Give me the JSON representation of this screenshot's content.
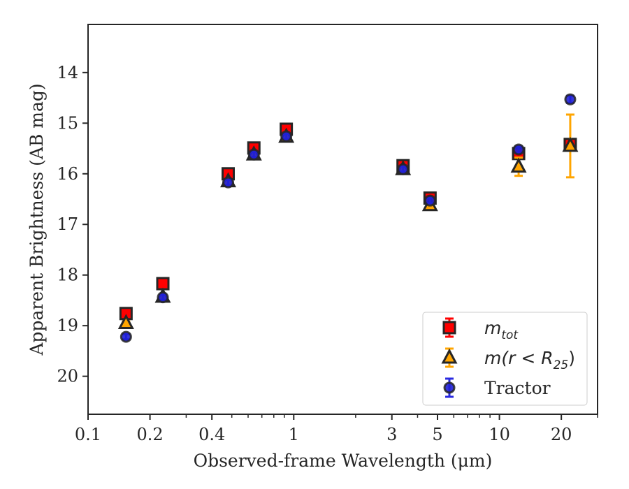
{
  "chart_data": {
    "type": "scatter",
    "xlabel": "Observed-frame Wavelength (μm)",
    "ylabel": "Apparent Brightness (AB mag)",
    "xscale": "log",
    "xlim": [
      0.1,
      30
    ],
    "ylim": [
      20.75,
      13.05
    ],
    "y_inverted": true,
    "x_tick_labels": [
      {
        "value": 0.1,
        "label": "0.1"
      },
      {
        "value": 0.2,
        "label": "0.2"
      },
      {
        "value": 0.4,
        "label": "0.4"
      },
      {
        "value": 1,
        "label": "1"
      },
      {
        "value": 3,
        "label": "3"
      },
      {
        "value": 5,
        "label": "5"
      },
      {
        "value": 10,
        "label": "10"
      },
      {
        "value": 20,
        "label": "20"
      }
    ],
    "x_minor_ticks": [
      0.3,
      0.5,
      0.6,
      0.7,
      0.8,
      0.9,
      2,
      4,
      6,
      7,
      8,
      9,
      30
    ],
    "y_ticks": [
      14,
      15,
      16,
      17,
      18,
      19,
      20
    ],
    "grid": false,
    "legend_position": "lower-right",
    "legend": [
      {
        "label": "m",
        "sub": "tot",
        "marker": "square",
        "color": "#ff0000",
        "errcolor": "#ff0000"
      },
      {
        "label": "m(r < R",
        "sub": "25",
        "suffix": ")",
        "marker": "triangle",
        "color": "#ffa500",
        "errcolor": "#ffa500"
      },
      {
        "label": "Tractor",
        "marker": "circle",
        "color": "#1f1fd6",
        "errcolor": "#2929e0"
      }
    ],
    "series": [
      {
        "marker": "square",
        "color": "#ff0000",
        "edgecolor": "#262626",
        "points": [
          {
            "x": 0.153,
            "y": 18.76,
            "err": 0.03
          },
          {
            "x": 0.231,
            "y": 18.17,
            "err": 0.03
          },
          {
            "x": 0.48,
            "y": 16.0,
            "err": 0.03
          },
          {
            "x": 0.64,
            "y": 15.49,
            "err": 0.03
          },
          {
            "x": 0.92,
            "y": 15.12,
            "err": 0.03
          },
          {
            "x": 3.4,
            "y": 15.84,
            "err": 0.03
          },
          {
            "x": 4.6,
            "y": 16.48,
            "err": 0.03
          },
          {
            "x": 12.4,
            "y": 15.6,
            "err": 0.03
          },
          {
            "x": 22.1,
            "y": 15.42,
            "err": 0.03
          }
        ]
      },
      {
        "marker": "triangle",
        "color": "#ffa500",
        "edgecolor": "#262626",
        "points": [
          {
            "x": 0.153,
            "y": 18.95,
            "err": 0.03
          },
          {
            "x": 0.231,
            "y": 18.43,
            "err": 0.03
          },
          {
            "x": 0.48,
            "y": 16.15,
            "err": 0.03
          },
          {
            "x": 0.64,
            "y": 15.62,
            "err": 0.03
          },
          {
            "x": 0.92,
            "y": 15.27,
            "err": 0.03
          },
          {
            "x": 3.4,
            "y": 15.91,
            "err": 0.03
          },
          {
            "x": 4.6,
            "y": 16.62,
            "err": 0.03
          },
          {
            "x": 12.4,
            "y": 15.86,
            "err": 0.18
          },
          {
            "x": 22.1,
            "y": 15.45,
            "err": 0.62
          }
        ]
      },
      {
        "marker": "circle",
        "color": "#1f1fd6",
        "edgecolor": "#262626",
        "points": [
          {
            "x": 0.153,
            "y": 19.22,
            "err": 0.05
          },
          {
            "x": 0.231,
            "y": 18.44,
            "err": 0.05
          },
          {
            "x": 0.48,
            "y": 16.17,
            "err": 0.05
          },
          {
            "x": 0.64,
            "y": 15.62,
            "err": 0.05
          },
          {
            "x": 0.92,
            "y": 15.26,
            "err": 0.05
          },
          {
            "x": 3.4,
            "y": 15.91,
            "err": 0.05
          },
          {
            "x": 4.6,
            "y": 16.53,
            "err": 0.05
          },
          {
            "x": 12.4,
            "y": 15.52,
            "err": 0.06
          },
          {
            "x": 22.1,
            "y": 14.53,
            "err": 0.07
          }
        ]
      }
    ]
  }
}
